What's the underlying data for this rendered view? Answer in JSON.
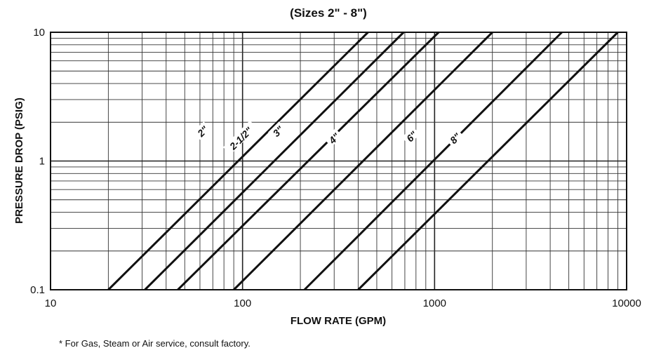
{
  "chart_data": {
    "type": "line",
    "title": "(Sizes 2\" - 8\")",
    "xlabel": "FLOW RATE (GPM)",
    "ylabel": "PRESSURE DROP (PSIG)",
    "x_scale": "log",
    "y_scale": "log",
    "xlim": [
      10,
      10000
    ],
    "ylim": [
      0.1,
      10
    ],
    "x_ticks": [
      "10",
      "100",
      "1000",
      "10000"
    ],
    "y_ticks": [
      "0.1",
      "1",
      "10"
    ],
    "grid": true,
    "series": [
      {
        "name": "2\"",
        "x": [
          20,
          450
        ],
        "y": [
          0.1,
          10
        ],
        "label_at": [
          62,
          1.7
        ]
      },
      {
        "name": "2-1/2\"",
        "x": [
          31,
          690
        ],
        "y": [
          0.1,
          10
        ],
        "label_at": [
          98,
          1.5
        ]
      },
      {
        "name": "3\"",
        "x": [
          46,
          1050
        ],
        "y": [
          0.1,
          10
        ],
        "label_at": [
          153,
          1.7
        ]
      },
      {
        "name": "4\"",
        "x": [
          90,
          2000
        ],
        "y": [
          0.1,
          10
        ],
        "label_at": [
          300,
          1.5
        ]
      },
      {
        "name": "6\"",
        "x": [
          210,
          4600
        ],
        "y": [
          0.1,
          10
        ],
        "label_at": [
          760,
          1.55
        ]
      },
      {
        "name": "8\"",
        "x": [
          400,
          9000
        ],
        "y": [
          0.1,
          10
        ],
        "label_at": [
          1280,
          1.5
        ]
      }
    ]
  },
  "footnote": "* For Gas, Steam or Air service, consult factory."
}
